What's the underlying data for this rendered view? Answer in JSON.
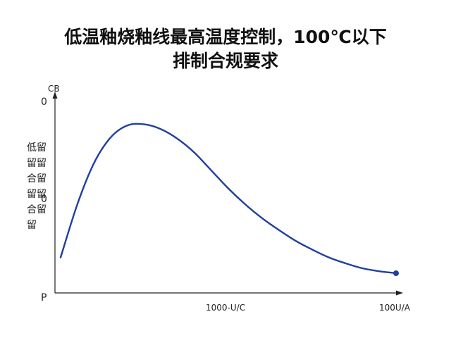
{
  "chart_data": {
    "type": "line",
    "title_line1": "低温釉烧釉线最高温度控制，100℃以下",
    "title_line2": "排制合规要求",
    "y_axis_top_label": "CB",
    "y_tick_top": "0",
    "y_tick_mid": "0",
    "y_tick_bottom": "P",
    "ylabel_lines": [
      "低留",
      "留留",
      "合留",
      "留留",
      "合留",
      "留"
    ],
    "x_tick_labels": [
      "1000-U/C",
      "100U/A"
    ],
    "curve_color": "#1f3f9f",
    "series": [
      {
        "points": [
          [
            0.0,
            0.18
          ],
          [
            0.05,
            0.45
          ],
          [
            0.1,
            0.66
          ],
          [
            0.15,
            0.79
          ],
          [
            0.2,
            0.85
          ],
          [
            0.25,
            0.855
          ],
          [
            0.3,
            0.83
          ],
          [
            0.35,
            0.78
          ],
          [
            0.4,
            0.71
          ],
          [
            0.45,
            0.62
          ],
          [
            0.5,
            0.53
          ],
          [
            0.55,
            0.45
          ],
          [
            0.6,
            0.38
          ],
          [
            0.65,
            0.32
          ],
          [
            0.7,
            0.265
          ],
          [
            0.75,
            0.22
          ],
          [
            0.8,
            0.18
          ],
          [
            0.85,
            0.15
          ],
          [
            0.9,
            0.125
          ],
          [
            0.95,
            0.11
          ],
          [
            1.0,
            0.1
          ]
        ]
      }
    ],
    "xlim": [
      0,
      1
    ],
    "ylim": [
      0,
      1
    ]
  }
}
